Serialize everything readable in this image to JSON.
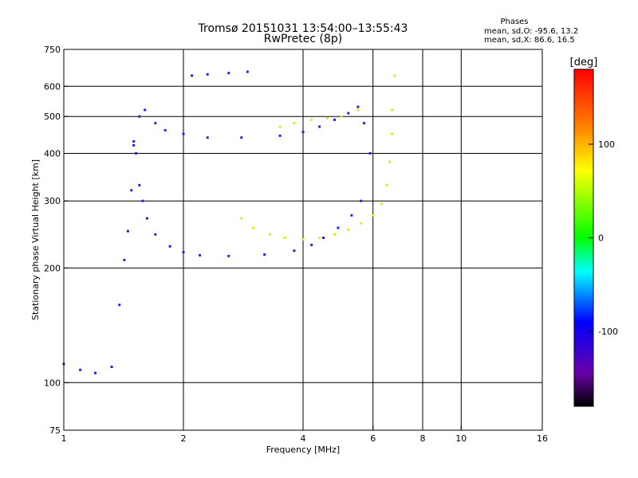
{
  "chart_data": {
    "type": "scatter",
    "title": "Tromsø 20151031 13:54:00–13:55:43",
    "subtitle": "RwPretec (8p)",
    "xlabel": "Frequency [MHz]",
    "ylabel": "Stationary phase Virtual Height [km]",
    "x_scale": "log",
    "y_scale": "log",
    "xlim": [
      1,
      16
    ],
    "ylim": [
      75,
      750
    ],
    "xticks": [
      1,
      2,
      4,
      6,
      8,
      10,
      16
    ],
    "xtick_labels": [
      "1",
      "2",
      "4",
      "6",
      "8",
      "10",
      "16"
    ],
    "xgrid": [
      1,
      2,
      4,
      6,
      8,
      10,
      16
    ],
    "yticks": [
      75,
      100,
      200,
      300,
      400,
      500,
      600,
      750
    ],
    "ytick_labels": [
      "75",
      "100",
      "200",
      "300",
      "400",
      "500",
      "600",
      "750"
    ],
    "ygrid": [
      100,
      200,
      300,
      400,
      500,
      600
    ],
    "grid": true,
    "stats": {
      "heading": "Phases",
      "line_o": "mean, sd,O: -95.6, 13.2",
      "line_x": "mean, sd,X:  86.6, 16.5"
    },
    "colorbar": {
      "label": "[deg]",
      "range": [
        -180,
        180
      ],
      "ticks": [
        100,
        0,
        -100
      ],
      "tick_labels": [
        "100",
        "0",
        "-100"
      ],
      "colormap": "rainbow"
    },
    "series": [
      {
        "name": "O",
        "color": "#2323e6",
        "phase_mean": -95.6,
        "phase_sd": 13.2,
        "x": [
          1.0,
          1.1,
          1.2,
          1.32,
          1.38,
          1.42,
          1.45,
          1.48,
          1.5,
          1.55,
          1.6,
          1.7,
          1.8,
          2.0,
          2.3,
          2.8,
          3.5,
          4.0,
          4.4,
          4.8,
          5.2,
          5.5,
          5.7,
          5.9,
          1.5,
          1.52,
          1.55,
          1.58,
          1.62,
          1.7,
          1.85,
          2.0,
          2.2,
          2.6,
          3.2,
          3.8,
          4.2,
          4.5,
          4.9,
          5.3,
          5.6,
          2.1,
          2.3,
          2.6,
          2.9
        ],
        "y": [
          112,
          108,
          106,
          110,
          160,
          210,
          250,
          320,
          420,
          500,
          520,
          480,
          460,
          450,
          440,
          440,
          445,
          455,
          470,
          490,
          510,
          530,
          480,
          400,
          430,
          400,
          330,
          300,
          270,
          245,
          228,
          220,
          216,
          215,
          217,
          222,
          230,
          240,
          255,
          275,
          300,
          640,
          645,
          650,
          655
        ]
      },
      {
        "name": "X",
        "color": "#e6e61e",
        "phase_mean": 86.6,
        "phase_sd": 16.5,
        "x": [
          2.8,
          3.0,
          3.3,
          3.6,
          4.0,
          4.4,
          4.8,
          5.2,
          5.6,
          6.0,
          6.3,
          6.5,
          6.6,
          6.7,
          6.7,
          6.8,
          3.5,
          3.8,
          4.2,
          4.6,
          5.0,
          5.5
        ],
        "y": [
          270,
          255,
          245,
          240,
          238,
          240,
          245,
          252,
          262,
          275,
          295,
          330,
          380,
          450,
          520,
          640,
          470,
          480,
          490,
          495,
          500,
          520
        ]
      }
    ]
  }
}
